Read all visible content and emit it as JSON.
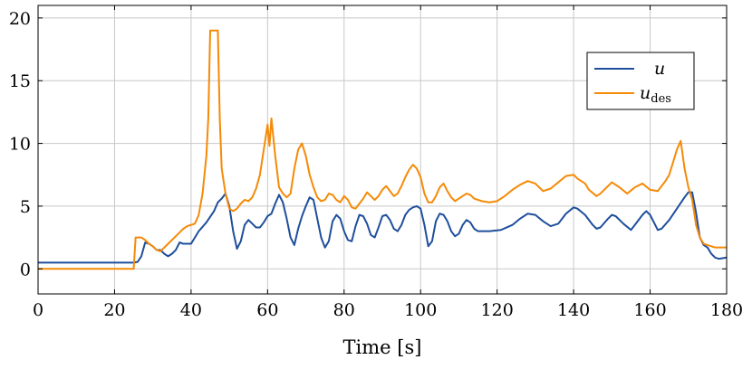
{
  "chart_data": {
    "type": "line",
    "title": "",
    "xlabel": "Time [s]",
    "ylabel": "",
    "xlim": [
      0,
      180
    ],
    "ylim": [
      -2,
      21
    ],
    "xticks": [
      0,
      20,
      40,
      60,
      80,
      100,
      120,
      140,
      160,
      180
    ],
    "yticks": [
      0,
      5,
      10,
      15,
      20
    ],
    "grid": true,
    "legend_position": "top-right",
    "series": [
      {
        "name": "u",
        "color": "#1f4f9c",
        "points": [
          [
            0,
            0.5
          ],
          [
            10,
            0.5
          ],
          [
            20,
            0.5
          ],
          [
            25,
            0.5
          ],
          [
            26,
            0.55
          ],
          [
            27,
            1.0
          ],
          [
            28,
            2.1
          ],
          [
            29,
            2.0
          ],
          [
            30,
            1.8
          ],
          [
            31,
            1.5
          ],
          [
            32,
            1.5
          ],
          [
            33,
            1.2
          ],
          [
            34,
            1.0
          ],
          [
            35,
            1.2
          ],
          [
            36,
            1.5
          ],
          [
            37,
            2.1
          ],
          [
            38,
            2.0
          ],
          [
            39,
            2.0
          ],
          [
            40,
            2.0
          ],
          [
            41,
            2.5
          ],
          [
            42,
            3.0
          ],
          [
            44,
            3.7
          ],
          [
            46,
            4.6
          ],
          [
            47,
            5.3
          ],
          [
            48,
            5.6
          ],
          [
            49,
            6.0
          ],
          [
            50,
            5.0
          ],
          [
            51,
            3.0
          ],
          [
            52,
            1.6
          ],
          [
            53,
            2.2
          ],
          [
            54,
            3.5
          ],
          [
            55,
            3.9
          ],
          [
            56,
            3.6
          ],
          [
            57,
            3.3
          ],
          [
            58,
            3.3
          ],
          [
            59,
            3.7
          ],
          [
            60,
            4.2
          ],
          [
            61,
            4.4
          ],
          [
            62,
            5.2
          ],
          [
            63,
            5.9
          ],
          [
            64,
            5.3
          ],
          [
            65,
            4.0
          ],
          [
            66,
            2.5
          ],
          [
            67,
            1.9
          ],
          [
            68,
            3.2
          ],
          [
            69,
            4.2
          ],
          [
            70,
            5.0
          ],
          [
            71,
            5.7
          ],
          [
            72,
            5.5
          ],
          [
            73,
            4.0
          ],
          [
            74,
            2.5
          ],
          [
            75,
            1.7
          ],
          [
            76,
            2.2
          ],
          [
            77,
            3.8
          ],
          [
            78,
            4.3
          ],
          [
            79,
            4.0
          ],
          [
            80,
            3.0
          ],
          [
            81,
            2.3
          ],
          [
            82,
            2.2
          ],
          [
            83,
            3.4
          ],
          [
            84,
            4.3
          ],
          [
            85,
            4.2
          ],
          [
            86,
            3.6
          ],
          [
            87,
            2.7
          ],
          [
            88,
            2.5
          ],
          [
            89,
            3.3
          ],
          [
            90,
            4.2
          ],
          [
            91,
            4.3
          ],
          [
            92,
            3.9
          ],
          [
            93,
            3.2
          ],
          [
            94,
            3.0
          ],
          [
            95,
            3.5
          ],
          [
            96,
            4.3
          ],
          [
            97,
            4.7
          ],
          [
            98,
            4.9
          ],
          [
            99,
            5.0
          ],
          [
            100,
            4.8
          ],
          [
            101,
            3.5
          ],
          [
            102,
            1.8
          ],
          [
            103,
            2.2
          ],
          [
            104,
            3.8
          ],
          [
            105,
            4.4
          ],
          [
            106,
            4.3
          ],
          [
            107,
            3.8
          ],
          [
            108,
            3.0
          ],
          [
            109,
            2.6
          ],
          [
            110,
            2.8
          ],
          [
            111,
            3.5
          ],
          [
            112,
            3.9
          ],
          [
            113,
            3.7
          ],
          [
            114,
            3.2
          ],
          [
            115,
            3.0
          ],
          [
            118,
            3.0
          ],
          [
            121,
            3.1
          ],
          [
            124,
            3.5
          ],
          [
            126,
            4.0
          ],
          [
            128,
            4.4
          ],
          [
            130,
            4.3
          ],
          [
            132,
            3.8
          ],
          [
            134,
            3.4
          ],
          [
            136,
            3.6
          ],
          [
            138,
            4.4
          ],
          [
            140,
            4.9
          ],
          [
            141,
            4.8
          ],
          [
            143,
            4.3
          ],
          [
            145,
            3.5
          ],
          [
            146,
            3.2
          ],
          [
            147,
            3.3
          ],
          [
            149,
            4.0
          ],
          [
            150,
            4.3
          ],
          [
            151,
            4.2
          ],
          [
            153,
            3.6
          ],
          [
            155,
            3.1
          ],
          [
            156,
            3.5
          ],
          [
            158,
            4.3
          ],
          [
            159,
            4.6
          ],
          [
            160,
            4.3
          ],
          [
            161,
            3.7
          ],
          [
            162,
            3.1
          ],
          [
            163,
            3.2
          ],
          [
            165,
            3.9
          ],
          [
            167,
            4.8
          ],
          [
            169,
            5.7
          ],
          [
            170,
            6.1
          ],
          [
            171,
            6.1
          ],
          [
            172,
            4.5
          ],
          [
            173,
            2.5
          ],
          [
            174,
            1.9
          ],
          [
            175,
            1.7
          ],
          [
            176,
            1.2
          ],
          [
            177,
            0.9
          ],
          [
            178,
            0.8
          ],
          [
            180,
            0.9
          ]
        ]
      },
      {
        "name": "u_des",
        "color": "#f58a07",
        "points": [
          [
            0,
            0.0
          ],
          [
            10,
            0.0
          ],
          [
            20,
            0.0
          ],
          [
            25,
            0.0
          ],
          [
            25.5,
            2.5
          ],
          [
            27,
            2.5
          ],
          [
            28,
            2.3
          ],
          [
            29,
            2.0
          ],
          [
            30,
            1.8
          ],
          [
            31,
            1.5
          ],
          [
            32,
            1.4
          ],
          [
            33,
            1.7
          ],
          [
            34,
            2.0
          ],
          [
            35,
            2.3
          ],
          [
            36,
            2.6
          ],
          [
            37,
            2.9
          ],
          [
            38,
            3.2
          ],
          [
            39,
            3.4
          ],
          [
            40,
            3.5
          ],
          [
            41,
            3.6
          ],
          [
            42,
            4.3
          ],
          [
            43,
            6.0
          ],
          [
            44,
            9.0
          ],
          [
            44.5,
            12.0
          ],
          [
            45,
            19.0
          ],
          [
            47,
            19.0
          ],
          [
            47.5,
            12.0
          ],
          [
            48,
            8.0
          ],
          [
            49,
            6.0
          ],
          [
            50,
            4.8
          ],
          [
            51,
            4.6
          ],
          [
            52,
            4.8
          ],
          [
            53,
            5.2
          ],
          [
            54,
            5.5
          ],
          [
            55,
            5.4
          ],
          [
            56,
            5.7
          ],
          [
            57,
            6.4
          ],
          [
            58,
            7.5
          ],
          [
            59,
            9.5
          ],
          [
            60,
            11.5
          ],
          [
            60.5,
            9.8
          ],
          [
            61,
            12.0
          ],
          [
            62,
            9.0
          ],
          [
            63,
            6.5
          ],
          [
            64,
            6.0
          ],
          [
            65,
            5.7
          ],
          [
            66,
            6.0
          ],
          [
            67,
            8.0
          ],
          [
            68,
            9.5
          ],
          [
            69,
            10.0
          ],
          [
            70,
            9.0
          ],
          [
            71,
            7.5
          ],
          [
            72,
            6.5
          ],
          [
            73,
            5.7
          ],
          [
            74,
            5.4
          ],
          [
            75,
            5.5
          ],
          [
            76,
            6.0
          ],
          [
            77,
            5.9
          ],
          [
            78,
            5.5
          ],
          [
            79,
            5.3
          ],
          [
            80,
            5.8
          ],
          [
            81,
            5.5
          ],
          [
            82,
            4.9
          ],
          [
            83,
            4.8
          ],
          [
            84,
            5.2
          ],
          [
            85,
            5.6
          ],
          [
            86,
            6.1
          ],
          [
            87,
            5.8
          ],
          [
            88,
            5.5
          ],
          [
            89,
            5.8
          ],
          [
            90,
            6.3
          ],
          [
            91,
            6.6
          ],
          [
            92,
            6.2
          ],
          [
            93,
            5.8
          ],
          [
            94,
            6.0
          ],
          [
            95,
            6.6
          ],
          [
            96,
            7.3
          ],
          [
            97,
            7.9
          ],
          [
            98,
            8.3
          ],
          [
            99,
            8.0
          ],
          [
            100,
            7.3
          ],
          [
            101,
            6.0
          ],
          [
            102,
            5.3
          ],
          [
            103,
            5.3
          ],
          [
            104,
            5.8
          ],
          [
            105,
            6.5
          ],
          [
            106,
            6.8
          ],
          [
            107,
            6.2
          ],
          [
            108,
            5.7
          ],
          [
            109,
            5.4
          ],
          [
            110,
            5.6
          ],
          [
            111,
            5.8
          ],
          [
            112,
            6.0
          ],
          [
            113,
            5.9
          ],
          [
            114,
            5.6
          ],
          [
            116,
            5.4
          ],
          [
            118,
            5.3
          ],
          [
            120,
            5.4
          ],
          [
            122,
            5.8
          ],
          [
            124,
            6.3
          ],
          [
            126,
            6.7
          ],
          [
            128,
            7.0
          ],
          [
            130,
            6.8
          ],
          [
            132,
            6.2
          ],
          [
            134,
            6.4
          ],
          [
            136,
            6.9
          ],
          [
            138,
            7.4
          ],
          [
            140,
            7.5
          ],
          [
            141,
            7.2
          ],
          [
            143,
            6.8
          ],
          [
            144,
            6.3
          ],
          [
            146,
            5.8
          ],
          [
            147,
            6.0
          ],
          [
            149,
            6.6
          ],
          [
            150,
            6.9
          ],
          [
            152,
            6.5
          ],
          [
            154,
            6.0
          ],
          [
            156,
            6.5
          ],
          [
            158,
            6.8
          ],
          [
            160,
            6.3
          ],
          [
            162,
            6.2
          ],
          [
            164,
            7.0
          ],
          [
            165,
            7.5
          ],
          [
            166,
            8.5
          ],
          [
            167,
            9.5
          ],
          [
            168,
            10.2
          ],
          [
            169,
            8.0
          ],
          [
            170,
            6.5
          ],
          [
            171,
            5.5
          ],
          [
            172,
            3.5
          ],
          [
            173,
            2.5
          ],
          [
            174,
            2.0
          ],
          [
            175,
            1.9
          ],
          [
            176,
            1.8
          ],
          [
            177,
            1.7
          ],
          [
            178,
            1.7
          ],
          [
            180,
            1.7
          ]
        ]
      }
    ],
    "legend": [
      {
        "label": "u",
        "color": "#1f4f9c"
      },
      {
        "label_main": "u",
        "label_sub": "des",
        "color": "#f58a07"
      }
    ]
  }
}
